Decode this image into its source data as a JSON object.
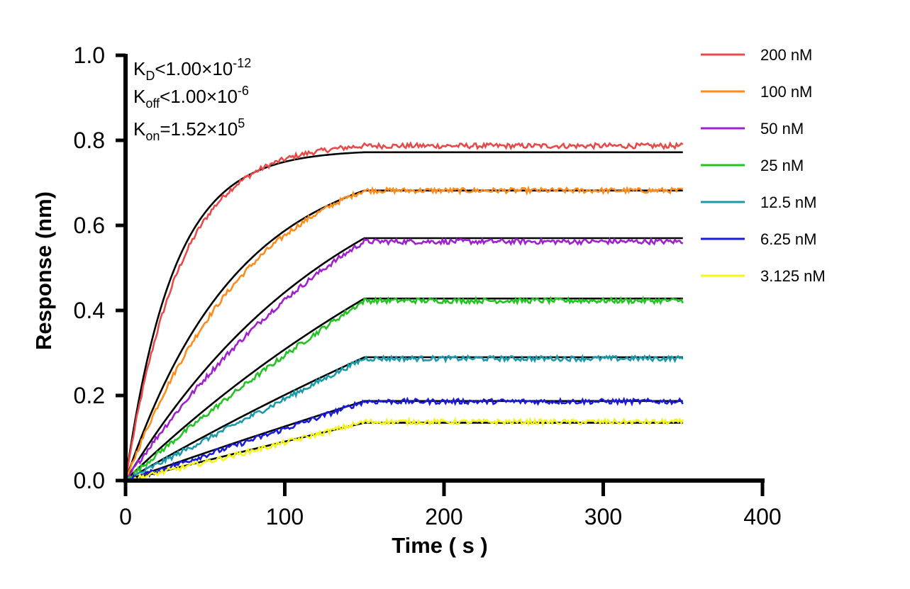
{
  "chart_data": {
    "type": "line",
    "title": "",
    "xlabel": "Time ( s )",
    "ylabel": "Response (nm)",
    "xlim": [
      0,
      400
    ],
    "ylim": [
      0,
      1.0
    ],
    "x_ticks": [
      "0",
      "100",
      "200",
      "300",
      "400"
    ],
    "y_ticks": [
      "0.0",
      "0.2",
      "0.4",
      "0.6",
      "0.8",
      "1.0"
    ],
    "grid": false,
    "legend_position": "top-right",
    "association_end": 150,
    "x_end": 350,
    "annotations": {
      "kd": {
        "main": "K",
        "sub": "D",
        "rel": "<1.00×10",
        "sup": "-12"
      },
      "koff": {
        "main": "K",
        "sub": "off",
        "rel": "<1.00×10",
        "sup": "-6"
      },
      "kon": {
        "main": "K",
        "sub": "on",
        "rel": "=1.52×10",
        "sup": "5"
      }
    },
    "fit_color": "#000000",
    "series": [
      {
        "name": "200 nM",
        "color": "#e84a4a",
        "plateau": 0.772,
        "tau": 30,
        "data_offset": 0.015
      },
      {
        "name": "100 nM",
        "color": "#ff8c1a",
        "plateau": 0.682,
        "tau": 70,
        "data_offset": 0.0
      },
      {
        "name": "50 nM",
        "color": "#a020d0",
        "plateau": 0.57,
        "tau": 140,
        "data_offset": -0.008
      },
      {
        "name": "25 nM",
        "color": "#22c422",
        "plateau": 0.428,
        "tau": 300,
        "data_offset": -0.005
      },
      {
        "name": "12.5 nM",
        "color": "#1a9aaa",
        "plateau": 0.29,
        "tau": 600,
        "data_offset": -0.003
      },
      {
        "name": "6.25 nM",
        "color": "#1a1ad8",
        "plateau": 0.187,
        "tau": 1200,
        "data_offset": -0.001
      },
      {
        "name": "3.125 nM",
        "color": "#f5f51a",
        "plateau": 0.136,
        "tau": 2400,
        "data_offset": 0.002
      }
    ]
  }
}
